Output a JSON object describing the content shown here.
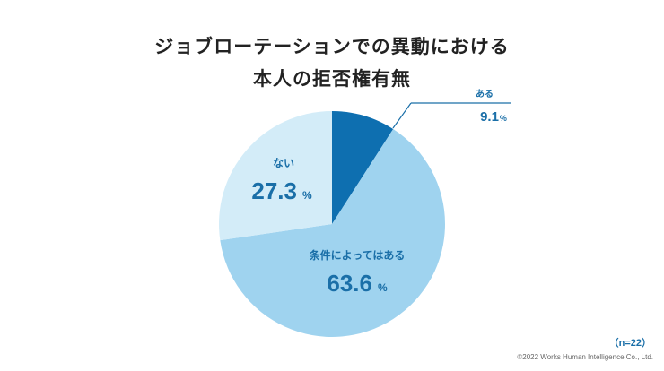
{
  "title_lines": [
    "ジョブローテーションでの異動における",
    "本人の拒否権有無"
  ],
  "chart_data": {
    "type": "pie",
    "title": "ジョブローテーションでの異動における本人の拒否権有無",
    "slices": [
      {
        "label": "ある",
        "value": 9.1,
        "unit": "%",
        "color": "#0e6fb0"
      },
      {
        "label": "条件によってはある",
        "value": 63.6,
        "unit": "%",
        "color": "#9fd3ef"
      },
      {
        "label": "ない",
        "value": 27.3,
        "unit": "%",
        "color": "#d3ecf8"
      }
    ],
    "start_direction": "top, clockwise"
  },
  "sample_size": "（n=22）",
  "copyright": "©2022 Works Human Intelligence Co., Ltd.",
  "colors": {
    "label_text": "#1a6fa8",
    "title_text": "#222222"
  }
}
